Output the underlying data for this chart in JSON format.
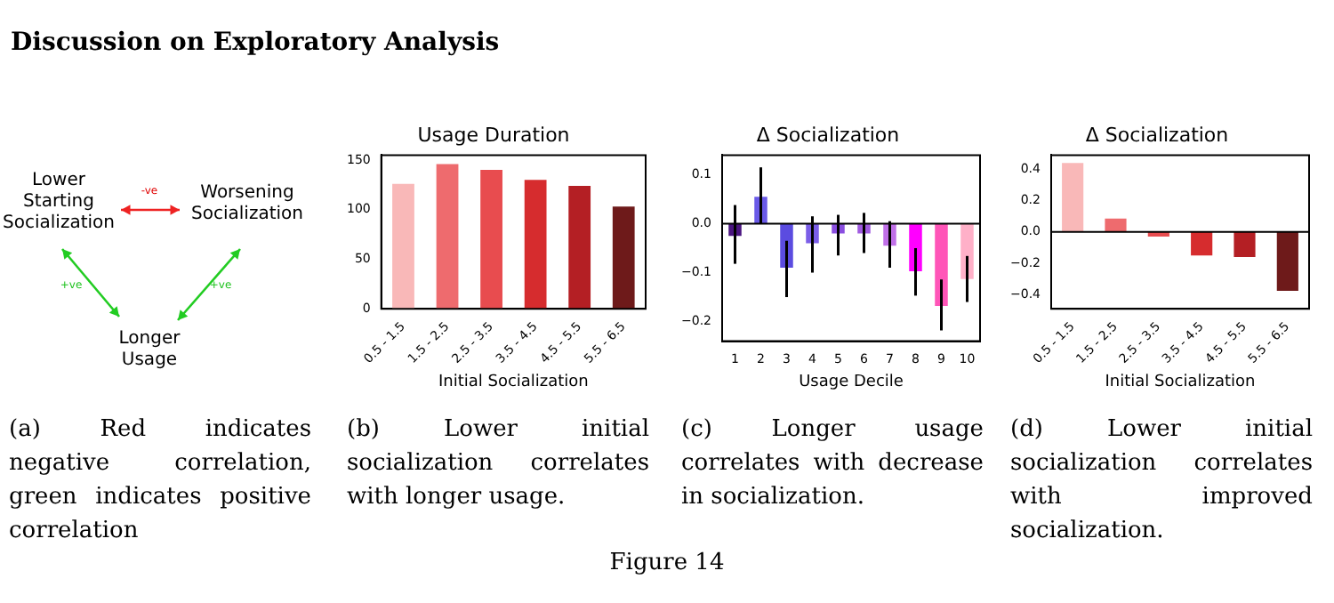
{
  "chart_data": [
    {
      "type": "other",
      "title": "Discussion on Exploratory Analysis",
      "annotations": [
        "Lower Starting Socialization",
        "Worsening Socialization",
        "Longer Usage",
        "-ve",
        "+ve",
        "+ve",
        "(a) Red indicates negative correlation, green indicates positive correlation",
        "Figure 14"
      ]
    },
    {
      "type": "bar",
      "title": "Usage Duration",
      "xlabel": "Initial Socialization",
      "categories": [
        "0.5 - 1.5",
        "1.5 - 2.5",
        "2.5 - 3.5",
        "3.5 - 4.5",
        "4.5 - 5.5",
        "5.5 - 6.5"
      ],
      "values": [
        126,
        146,
        140,
        130,
        124,
        103
      ],
      "colors": [
        "#f9b8b8",
        "#ee6b6e",
        "#e84c4f",
        "#d62c2e",
        "#b41f24",
        "#6e1a1a"
      ],
      "ylim": [
        0,
        155
      ],
      "yticks": [
        0,
        50,
        100,
        150
      ],
      "grid": false,
      "annotations": [
        "(b) Lower initial socialization correlates with longer usage."
      ]
    },
    {
      "type": "bar",
      "title": "Δ Socialization",
      "xlabel": "Usage Decile",
      "categories": [
        "1",
        "2",
        "3",
        "4",
        "5",
        "6",
        "7",
        "8",
        "9",
        "10"
      ],
      "values": [
        -0.025,
        0.055,
        -0.09,
        -0.04,
        -0.02,
        -0.02,
        -0.045,
        -0.097,
        -0.168,
        -0.113
      ],
      "colors": [
        "#4a1580",
        "#6a5ae8",
        "#5b4ce0",
        "#7b5ee8",
        "#8a4ee0",
        "#a05ae0",
        "#c070e8",
        "#ff00ff",
        "#ff55b8",
        "#ffb0c8"
      ],
      "errors": [
        [
          -0.082,
          0.038
        ],
        [
          0.0,
          0.115
        ],
        [
          -0.15,
          -0.035
        ],
        [
          -0.1,
          0.015
        ],
        [
          -0.065,
          0.018
        ],
        [
          -0.06,
          0.022
        ],
        [
          -0.09,
          0.005
        ],
        [
          -0.147,
          -0.05
        ],
        [
          -0.218,
          -0.114
        ],
        [
          -0.16,
          -0.066
        ]
      ],
      "ylim": [
        -0.24,
        0.14
      ],
      "yticks": [
        {
          "value": -0.2,
          "label": "−0.2"
        },
        {
          "value": -0.1,
          "label": "−0.1"
        },
        {
          "value": 0,
          "label": "0.0"
        },
        {
          "value": 0.1,
          "label": "0.1"
        }
      ],
      "grid": false,
      "ref_lines": [
        {
          "axis": "y",
          "value": 0,
          "color": "#000000"
        }
      ],
      "annotations": [
        "(c) Longer usage correlates with decrease in socialization."
      ]
    },
    {
      "type": "bar",
      "title": "Δ Socialization",
      "xlabel": "Initial Socialization",
      "categories": [
        "0.5 - 1.5",
        "1.5 - 2.5",
        "2.5 - 3.5",
        "3.5 - 4.5",
        "4.5 - 5.5",
        "5.5 - 6.5"
      ],
      "values": [
        0.44,
        0.085,
        -0.03,
        -0.15,
        -0.16,
        -0.375
      ],
      "colors": [
        "#f9b8b8",
        "#ee6b6e",
        "#e84c4f",
        "#d62c2e",
        "#b41f24",
        "#6e1a1a"
      ],
      "ylim": [
        -0.49,
        0.49
      ],
      "yticks": [
        {
          "value": -0.4,
          "label": "−0.4"
        },
        {
          "value": -0.2,
          "label": "−0.2"
        },
        {
          "value": 0,
          "label": "0.0"
        },
        {
          "value": 0.2,
          "label": "0.2"
        },
        {
          "value": 0.4,
          "label": "0.4"
        }
      ],
      "grid": false,
      "ref_lines": [
        {
          "axis": "y",
          "value": 0,
          "color": "#000000"
        }
      ],
      "annotations": [
        "(d) Lower initial socialization correlates with improved socialization."
      ]
    }
  ]
}
